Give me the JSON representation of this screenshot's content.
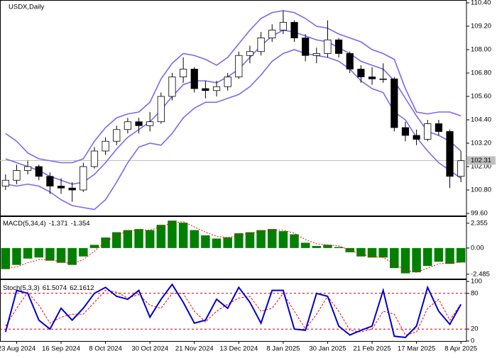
{
  "chart_data": [
    {
      "type": "candlestick",
      "title": "USDX,Daily",
      "categories": [
        null,
        "23 Aug 2024",
        null,
        null,
        null,
        "16 Sep 2024",
        null,
        null,
        null,
        "8 Oct 2024",
        null,
        null,
        null,
        "30 Oct 2024",
        null,
        null,
        null,
        "21 Nov 2024",
        null,
        null,
        null,
        "13 Dec 2024",
        null,
        null,
        null,
        "8 Jan 2025",
        null,
        null,
        null,
        "30 Jan 2025",
        null,
        null,
        null,
        "21 Feb 2025",
        null,
        null,
        null,
        "17 Mar 2025",
        null,
        null,
        null,
        "8 Apr 2025"
      ],
      "open": [
        101.0,
        101.3,
        101.8,
        102.0,
        101.5,
        101.0,
        100.9,
        100.8,
        102.0,
        102.8,
        103.3,
        103.9,
        104.3,
        104.1,
        104.3,
        105.6,
        106.6,
        107.0,
        106.0,
        105.9,
        106.1,
        106.6,
        107.7,
        107.9,
        108.6,
        109.0,
        109.4,
        108.6,
        107.7,
        107.8,
        108.5,
        107.8,
        107.0,
        106.6,
        106.5,
        106.5,
        104.0,
        103.6,
        103.4,
        104.2,
        103.8,
        101.5
      ],
      "high": [
        101.6,
        102.1,
        102.3,
        102.1,
        101.7,
        101.4,
        101.2,
        102.2,
        103.0,
        103.5,
        104.1,
        104.5,
        104.5,
        104.8,
        105.8,
        106.8,
        107.6,
        107.1,
        106.4,
        106.4,
        106.8,
        107.9,
        108.2,
        108.9,
        109.3,
        110.0,
        109.5,
        108.8,
        108.1,
        109.5,
        108.6,
        107.9,
        107.2,
        107.1,
        107.3,
        106.6,
        104.3,
        103.9,
        104.4,
        104.4,
        103.9,
        102.8
      ],
      "low": [
        100.8,
        101.1,
        101.6,
        101.3,
        100.6,
        100.6,
        100.2,
        100.7,
        101.9,
        102.6,
        103.1,
        103.7,
        103.7,
        103.8,
        104.2,
        105.4,
        106.3,
        105.8,
        105.5,
        105.6,
        105.9,
        106.5,
        107.3,
        107.7,
        108.4,
        108.8,
        108.4,
        107.4,
        107.3,
        107.6,
        107.6,
        106.8,
        106.3,
        106.2,
        106.3,
        103.8,
        103.3,
        103.1,
        103.3,
        103.6,
        100.9,
        101.2
      ],
      "close": [
        101.3,
        101.8,
        102.0,
        101.5,
        101.0,
        100.9,
        100.8,
        102.0,
        102.8,
        103.3,
        103.9,
        104.3,
        104.1,
        104.3,
        105.6,
        106.6,
        107.0,
        106.0,
        105.9,
        106.1,
        106.6,
        107.7,
        107.9,
        108.6,
        109.0,
        109.4,
        108.6,
        107.7,
        107.8,
        108.5,
        107.8,
        107.0,
        106.6,
        106.5,
        106.5,
        104.0,
        103.6,
        103.4,
        104.2,
        103.8,
        101.5,
        102.3
      ],
      "up_color": "#ffffff",
      "down_color": "#000000",
      "outline_color": "#000000",
      "bollinger": {
        "color": "#7b68ee",
        "upper": [
          103.7,
          103.3,
          102.7,
          102.4,
          102.3,
          102.2,
          102.2,
          102.4,
          103.3,
          104.0,
          104.5,
          104.7,
          104.8,
          105.3,
          106.5,
          107.3,
          107.8,
          107.7,
          107.5,
          107.2,
          107.6,
          108.3,
          109.0,
          109.6,
          109.9,
          110.0,
          109.9,
          109.6,
          109.2,
          109.1,
          108.8,
          108.6,
          108.4,
          108.0,
          107.8,
          107.5,
          106.0,
          104.8,
          104.7,
          104.8,
          104.8,
          104.6
        ],
        "middle": [
          102.4,
          102.2,
          102.0,
          101.8,
          101.5,
          101.3,
          101.1,
          101.2,
          101.6,
          102.2,
          102.9,
          103.5,
          103.9,
          104.3,
          104.9,
          105.6,
          106.2,
          106.4,
          106.4,
          106.3,
          106.6,
          107.0,
          107.6,
          108.2,
          108.7,
          109.0,
          108.9,
          108.7,
          108.5,
          108.4,
          108.1,
          107.8,
          107.4,
          107.2,
          107.0,
          106.4,
          105.5,
          104.6,
          103.8,
          103.6,
          103.3,
          102.8
        ],
        "lower": [
          101.1,
          101.0,
          101.1,
          101.0,
          100.7,
          100.3,
          100.0,
          99.9,
          99.8,
          100.3,
          101.2,
          102.2,
          103.0,
          103.2,
          103.1,
          103.7,
          104.5,
          105.0,
          105.3,
          105.3,
          105.5,
          105.7,
          106.1,
          106.7,
          107.4,
          107.8,
          108.0,
          107.8,
          107.7,
          107.6,
          107.4,
          107.0,
          106.4,
          106.0,
          105.8,
          104.8,
          104.4,
          103.5,
          102.8,
          102.2,
          101.8,
          101.4
        ]
      },
      "last_price": 102.31,
      "last_price_color": "#c0c0c0",
      "ylim": [
        99.6,
        110.4
      ],
      "yticks": [
        {
          "value": 110.4,
          "label": "110.40"
        },
        {
          "value": 109.2,
          "label": "109.20"
        },
        {
          "value": 108.0,
          "label": "108.00"
        },
        {
          "value": 106.8,
          "label": "106.80"
        },
        {
          "value": 105.6,
          "label": "105.60"
        },
        {
          "value": 104.4,
          "label": "104.40"
        },
        {
          "value": 103.2,
          "label": "103.20"
        },
        {
          "value": 102.0,
          "label": "102.00"
        },
        {
          "value": 100.8,
          "label": "100.80"
        },
        {
          "value": 99.6,
          "label": "99.60"
        }
      ]
    },
    {
      "type": "macd",
      "title": "MACD(5,34,4)",
      "histogram": {
        "color": "#008000",
        "values": [
          -2.0,
          -1.6,
          -1.0,
          -0.9,
          -1.2,
          -1.4,
          -1.6,
          -0.8,
          0.3,
          1.0,
          1.5,
          1.7,
          1.8,
          1.7,
          2.2,
          2.6,
          2.4,
          1.7,
          1.2,
          0.9,
          1.0,
          1.4,
          1.5,
          1.7,
          1.8,
          1.6,
          1.3,
          0.5,
          0.2,
          0.3,
          0.1,
          -0.4,
          -0.8,
          -0.9,
          -0.9,
          -1.9,
          -2.4,
          -2.3,
          -1.7,
          -1.3,
          -1.5,
          -1.371
        ]
      },
      "signal": {
        "color": "#ff0000",
        "values": [
          -1.9,
          -1.8,
          -1.4,
          -1.1,
          -1.1,
          -1.3,
          -1.5,
          -1.1,
          -0.3,
          0.6,
          1.2,
          1.6,
          1.7,
          1.7,
          2.0,
          2.4,
          2.5,
          2.0,
          1.5,
          1.1,
          1.0,
          1.2,
          1.4,
          1.6,
          1.7,
          1.7,
          1.4,
          0.8,
          0.4,
          0.3,
          0.2,
          -0.2,
          -0.6,
          -0.8,
          -0.9,
          -1.5,
          -2.1,
          -2.3,
          -1.9,
          -1.5,
          -1.4,
          -1.354
        ]
      },
      "ylim": [
        -2.9,
        2.95
      ],
      "yticks": [
        2.355,
        {
          "value": 0,
          "label": "0.00"
        },
        -2.485
      ]
    },
    {
      "type": "stochastic",
      "title": "Stoch(5,3,3)",
      "main": {
        "color": "#0000cd",
        "values": [
          15,
          85,
          80,
          35,
          20,
          55,
          35,
          55,
          80,
          90,
          75,
          70,
          85,
          40,
          70,
          95,
          65,
          30,
          35,
          70,
          55,
          90,
          65,
          30,
          85,
          85,
          20,
          18,
          80,
          75,
          25,
          10,
          18,
          25,
          85,
          8,
          6,
          25,
          90,
          50,
          28,
          61.5074
        ]
      },
      "signal": {
        "color": "#ff0000",
        "values": [
          25,
          55,
          82,
          60,
          30,
          40,
          45,
          45,
          65,
          85,
          82,
          72,
          78,
          60,
          55,
          80,
          80,
          50,
          32,
          50,
          62,
          72,
          75,
          50,
          55,
          80,
          50,
          20,
          45,
          75,
          50,
          18,
          15,
          20,
          50,
          45,
          10,
          15,
          55,
          70,
          35,
          62.1612
        ]
      },
      "levels": [
        80,
        20
      ],
      "level_color": "#cc0000",
      "ylim": [
        0,
        100
      ],
      "yticks": [
        100,
        80,
        20,
        0
      ]
    }
  ]
}
